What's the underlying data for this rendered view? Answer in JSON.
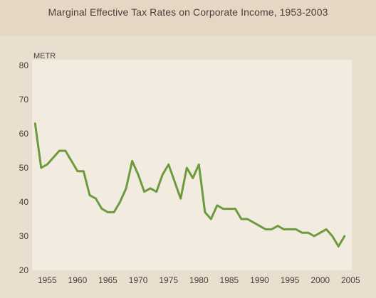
{
  "chart_data": {
    "type": "line",
    "title": "Marginal Effective Tax Rates on Corporate Income, 1953-2003",
    "ylabel": "METR",
    "xlabel": "",
    "ylim": [
      20,
      80
    ],
    "xlim": [
      1952.5,
      2005.2
    ],
    "yticks": [
      20,
      30,
      40,
      50,
      60,
      70,
      80
    ],
    "xticks": [
      1955,
      1960,
      1965,
      1970,
      1975,
      1980,
      1985,
      1990,
      1995,
      2000,
      2005
    ],
    "grid": false,
    "colors": {
      "background": "#e9dfcf",
      "title_band": "#e4d8c4",
      "plot_area": "#f2ece0",
      "line": "#6e9a3e",
      "text": "#4a3f3a"
    },
    "series": [
      {
        "x": [
          1953,
          1954,
          1955,
          1956,
          1957,
          1958,
          1959,
          1960,
          1961,
          1962,
          1963,
          1964,
          1965,
          1966,
          1967,
          1968,
          1969,
          1970,
          1971,
          1972,
          1973,
          1974,
          1975,
          1976,
          1977,
          1978,
          1979,
          1980,
          1981,
          1982,
          1983,
          1984,
          1985,
          1986,
          1987,
          1988,
          1989,
          1990,
          1991,
          1992,
          1993,
          1994,
          1995,
          1996,
          1997,
          1998,
          1999,
          2000,
          2001,
          2002,
          2003
        ],
        "y": [
          63,
          50,
          51,
          53,
          55,
          55,
          52,
          49,
          49,
          42,
          41,
          38,
          37,
          37,
          40,
          44,
          52,
          48,
          43,
          44,
          43,
          48,
          51,
          46,
          41,
          50,
          47,
          51,
          37,
          35,
          39,
          38,
          38,
          38,
          35,
          35,
          34,
          33,
          32,
          32,
          33,
          32,
          32,
          32,
          31,
          31,
          30,
          31,
          32,
          30,
          27
        ]
      },
      {
        "x": [
          2003,
          2004
        ],
        "y": [
          27,
          30
        ]
      }
    ]
  }
}
